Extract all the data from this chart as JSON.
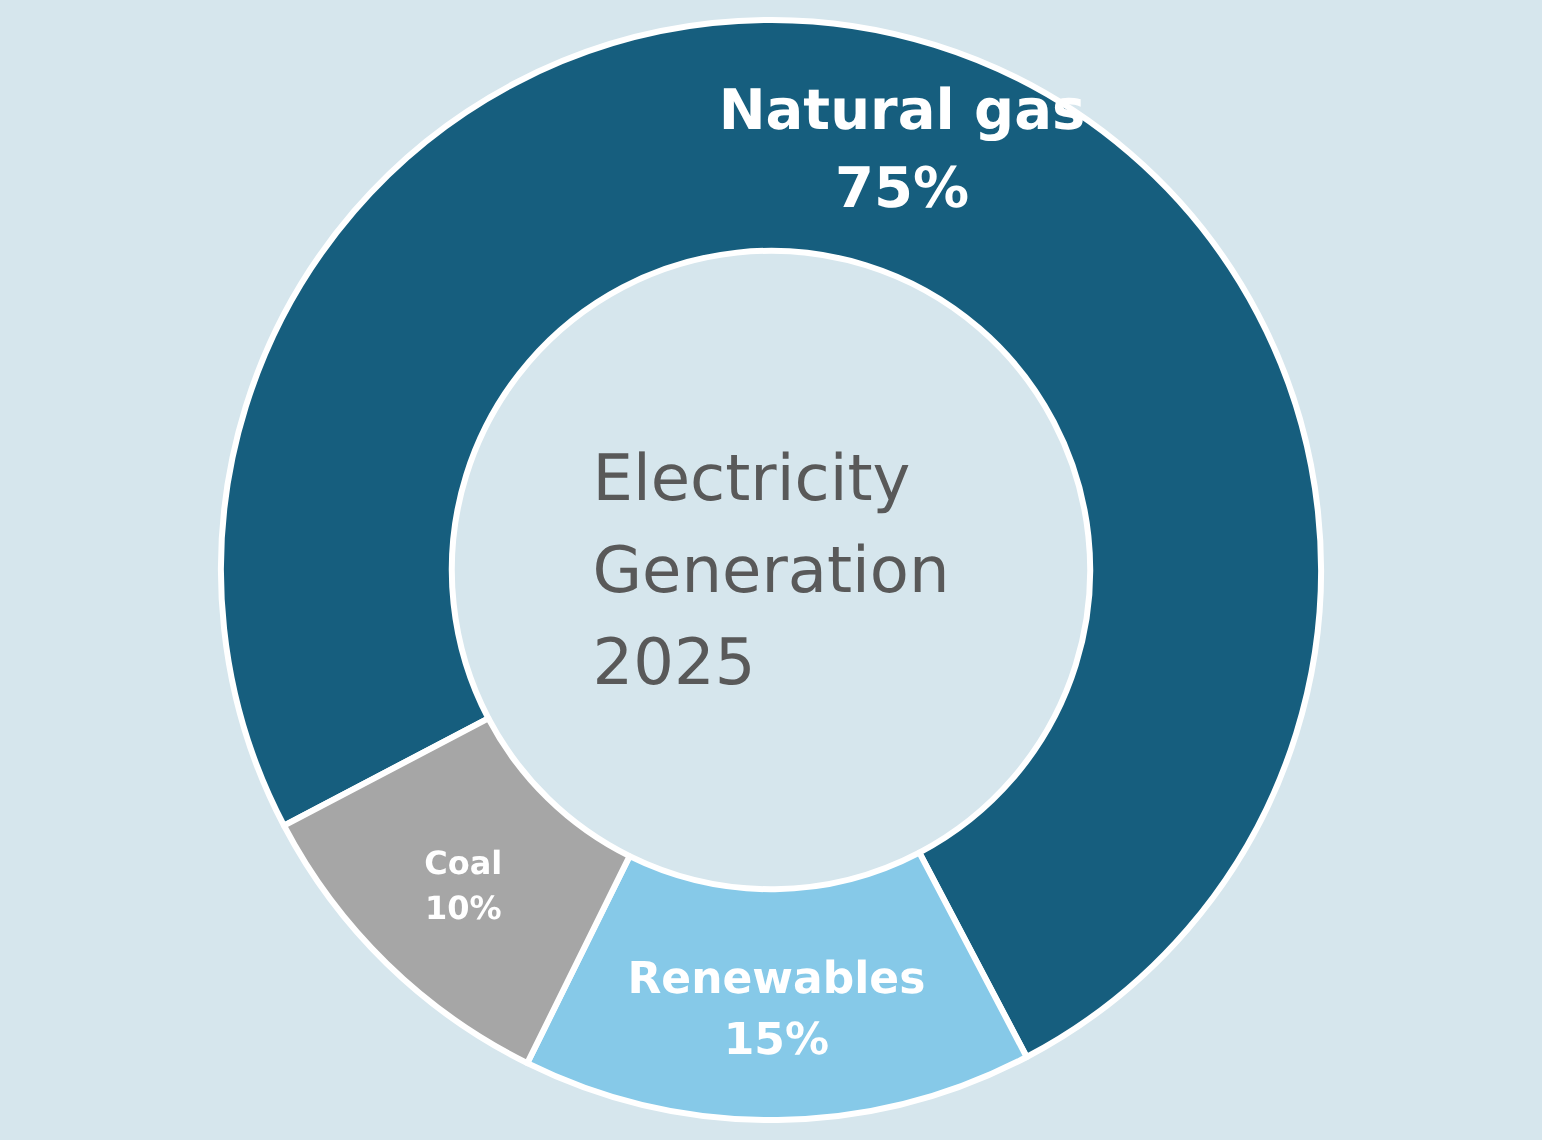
{
  "chart_data": {
    "type": "donut",
    "title": "Electricity\nGeneration\n2025",
    "categories": [
      "Natural gas",
      "Renewables",
      "Coal"
    ],
    "values": [
      75,
      15,
      10
    ],
    "colors": [
      "#165e7e",
      "#86c9e8",
      "#a6a6a6"
    ],
    "value_labels": [
      "75%",
      "15%",
      "10%"
    ],
    "legend": false
  }
}
